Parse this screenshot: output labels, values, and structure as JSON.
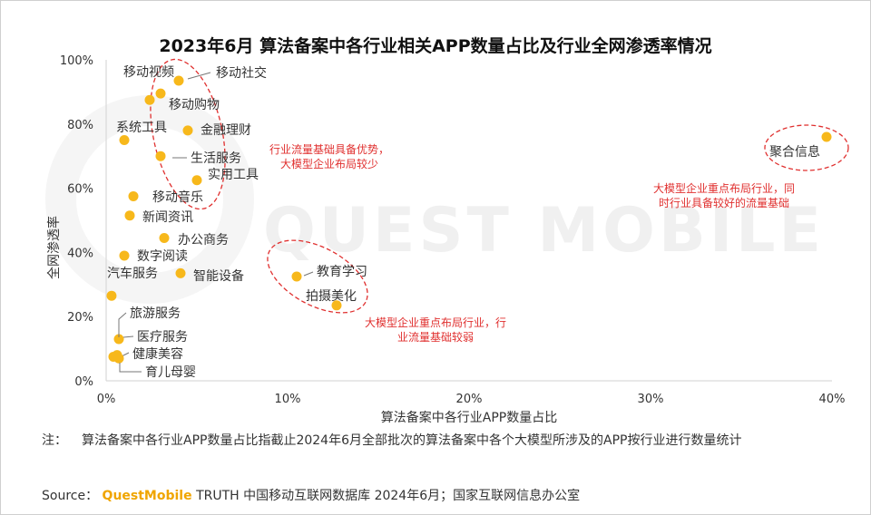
{
  "header": {
    "title": "2023年6月 算法备案中各行业相关APP数量占比及行业全网渗透率情况"
  },
  "watermark": {
    "text": "QUEST MOBILE"
  },
  "footer": {
    "note_label": "注：",
    "note_text": "算法备案中各行业APP数量占比指截止2024年6月全部批次的算法备案中各个大模型所涉及的APP按行业进行数量统计",
    "source_label": "Source：",
    "source_brand": "QuestMobile",
    "source_text": "TRUTH 中国移动互联网数据库 2024年6月；国家互联网信息办公室"
  },
  "colors": {
    "point": "#f7b81b",
    "annotation": "#e0302f",
    "axis": "#d9d9d9",
    "text": "#333333"
  },
  "chart_data": {
    "type": "scatter",
    "title": "2023年6月 算法备案中各行业相关APP数量占比及行业全网渗透率情况",
    "xlabel": "算法备案中各行业APP数量占比",
    "ylabel": "全网渗透率",
    "xlim": [
      0,
      0.4
    ],
    "ylim": [
      0,
      1.0
    ],
    "xticks": [
      "0%",
      "10%",
      "20%",
      "30%",
      "40%"
    ],
    "yticks": [
      "0%",
      "20%",
      "40%",
      "60%",
      "80%",
      "100%"
    ],
    "grid": false,
    "points": [
      {
        "label": "移动视频",
        "x": 0.024,
        "y": 0.875
      },
      {
        "label": "移动社交",
        "x": 0.04,
        "y": 0.935
      },
      {
        "label": "移动购物",
        "x": 0.03,
        "y": 0.895
      },
      {
        "label": "系统工具",
        "x": 0.01,
        "y": 0.75
      },
      {
        "label": "金融理财",
        "x": 0.045,
        "y": 0.78
      },
      {
        "label": "生活服务",
        "x": 0.03,
        "y": 0.7
      },
      {
        "label": "实用工具",
        "x": 0.05,
        "y": 0.625
      },
      {
        "label": "移动音乐",
        "x": 0.015,
        "y": 0.575
      },
      {
        "label": "新闻资讯",
        "x": 0.013,
        "y": 0.515
      },
      {
        "label": "办公商务",
        "x": 0.032,
        "y": 0.445
      },
      {
        "label": "数字阅读",
        "x": 0.01,
        "y": 0.39
      },
      {
        "label": "智能设备",
        "x": 0.041,
        "y": 0.335
      },
      {
        "label": "汽车服务",
        "x": 0.003,
        "y": 0.265
      },
      {
        "label": "旅游服务",
        "x": 0.007,
        "y": 0.13
      },
      {
        "label": "医疗服务",
        "x": 0.006,
        "y": 0.08
      },
      {
        "label": "健康美容",
        "x": 0.004,
        "y": 0.075
      },
      {
        "label": "育儿母婴",
        "x": 0.007,
        "y": 0.07
      },
      {
        "label": "教育学习",
        "x": 0.105,
        "y": 0.325
      },
      {
        "label": "拍摄美化",
        "x": 0.127,
        "y": 0.235
      },
      {
        "label": "聚合信息",
        "x": 0.397,
        "y": 0.76
      }
    ],
    "annotations": [
      {
        "text": "行业流量基础具备优势，",
        "text2": "大模型企业布局较少"
      },
      {
        "text": "大模型企业重点布局行业，行",
        "text2": "业流量基础较弱"
      },
      {
        "text": "大模型企业重点布局行业，同",
        "text2": "时行业具备较好的流量基础"
      }
    ]
  }
}
